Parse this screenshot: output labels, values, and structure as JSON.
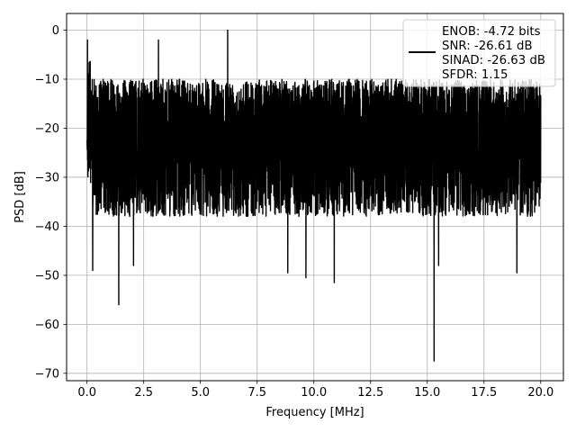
{
  "chart_data": {
    "type": "line",
    "title": "",
    "xlabel": "Frequency [MHz]",
    "ylabel": "PSD [dB]",
    "xlim": [
      -0.9,
      21.0
    ],
    "ylim": [
      -71.5,
      3.4
    ],
    "xticks": [
      0.0,
      2.5,
      5.0,
      7.5,
      10.0,
      12.5,
      15.0,
      17.5,
      20.0
    ],
    "xtick_labels": [
      "0.0",
      "2.5",
      "5.0",
      "7.5",
      "10.0",
      "12.5",
      "15.0",
      "17.5",
      "20.0"
    ],
    "yticks": [
      0,
      -10,
      -20,
      -30,
      -40,
      -50,
      -60,
      -70
    ],
    "ytick_labels": [
      "0",
      "−10",
      "−20",
      "−30",
      "−40",
      "−50",
      "−60",
      "−70"
    ],
    "grid": true,
    "legend_position": "top-right",
    "legend_entries": [
      "ENOB: -4.72 bits",
      "SNR: -26.61 dB",
      "SINAD: -26.63 dB",
      "SFDR: 1.15"
    ],
    "series": [
      {
        "color": "#000000",
        "x_range": [
          0.0,
          20.0
        ],
        "typical_envelope_db": [
          -38,
          -10
        ],
        "notable_peaks": [
          {
            "x": 0.02,
            "y": -2
          },
          {
            "x": 3.15,
            "y": -2
          },
          {
            "x": 6.2,
            "y": 0
          }
        ],
        "notable_dips": [
          {
            "x": 0.25,
            "y": -49
          },
          {
            "x": 1.4,
            "y": -56
          },
          {
            "x": 2.05,
            "y": -48
          },
          {
            "x": 8.85,
            "y": -49.5
          },
          {
            "x": 9.65,
            "y": -50.5
          },
          {
            "x": 10.9,
            "y": -51.5
          },
          {
            "x": 15.3,
            "y": -67.5
          },
          {
            "x": 15.5,
            "y": -48
          },
          {
            "x": 18.95,
            "y": -49.5
          }
        ]
      }
    ]
  }
}
